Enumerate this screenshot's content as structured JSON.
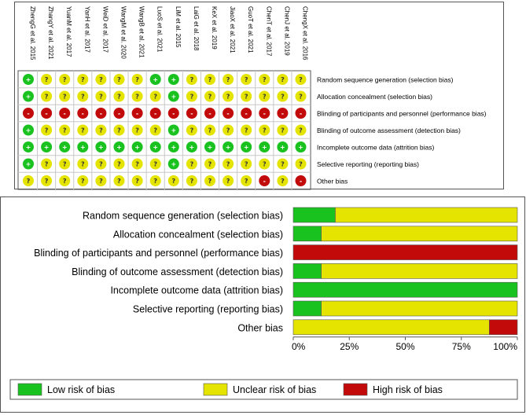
{
  "chart_data": [
    {
      "type": "table",
      "studies": [
        "ZhengG et al. 2015",
        "ZhangY et al. 2021",
        "YuanM et al. 2017",
        "YanH et al. 2017",
        "WeiD et al. 2017",
        "WangM et al. 2020",
        "WangB et al. 2021",
        "LuoS et al. 2021",
        "LiM et al. 2015",
        "LaiG et al. 2018",
        "KeX et al. 2019",
        "JiaoX et al. 2021",
        "GuoT et al. 2021",
        "ChenT et al. 2017",
        "ChenJ et al. 2019",
        "ChengX et al. 2016"
      ],
      "domains": [
        "Random sequence generation (selection bias)",
        "Allocation concealment (selection bias)",
        "Blinding of participants and personnel (performance bias)",
        "Blinding of outcome assessment (detection bias)",
        "Incomplete outcome data (attrition bias)",
        "Selective reporting (reporting bias)",
        "Other bias"
      ],
      "symbols": {
        "low": "+",
        "unclear": "?",
        "high": "-"
      },
      "ratings": [
        [
          "low",
          "unclear",
          "unclear",
          "unclear",
          "unclear",
          "unclear",
          "unclear",
          "low",
          "low",
          "unclear",
          "unclear",
          "unclear",
          "unclear",
          "unclear",
          "unclear",
          "unclear"
        ],
        [
          "low",
          "unclear",
          "unclear",
          "unclear",
          "unclear",
          "unclear",
          "unclear",
          "unclear",
          "low",
          "unclear",
          "unclear",
          "unclear",
          "unclear",
          "unclear",
          "unclear",
          "unclear"
        ],
        [
          "high",
          "high",
          "high",
          "high",
          "high",
          "high",
          "high",
          "high",
          "high",
          "high",
          "high",
          "high",
          "high",
          "high",
          "high",
          "high"
        ],
        [
          "low",
          "unclear",
          "unclear",
          "unclear",
          "unclear",
          "unclear",
          "unclear",
          "unclear",
          "low",
          "unclear",
          "unclear",
          "unclear",
          "unclear",
          "unclear",
          "unclear",
          "unclear"
        ],
        [
          "low",
          "low",
          "low",
          "low",
          "low",
          "low",
          "low",
          "low",
          "low",
          "low",
          "low",
          "low",
          "low",
          "low",
          "low",
          "low"
        ],
        [
          "low",
          "unclear",
          "unclear",
          "unclear",
          "unclear",
          "unclear",
          "unclear",
          "unclear",
          "low",
          "unclear",
          "unclear",
          "unclear",
          "unclear",
          "unclear",
          "unclear",
          "unclear"
        ],
        [
          "unclear",
          "unclear",
          "unclear",
          "unclear",
          "unclear",
          "unclear",
          "unclear",
          "unclear",
          "unclear",
          "unclear",
          "unclear",
          "unclear",
          "unclear",
          "high",
          "unclear",
          "high"
        ]
      ]
    },
    {
      "type": "bar",
      "orientation": "horizontal",
      "stacked": true,
      "categories": [
        "Random sequence generation (selection bias)",
        "Allocation concealment (selection bias)",
        "Blinding of participants and personnel (performance bias)",
        "Blinding of outcome assessment (detection bias)",
        "Incomplete outcome data (attrition bias)",
        "Selective reporting (reporting bias)",
        "Other bias"
      ],
      "series": [
        {
          "name": "Low risk of bias",
          "values": [
            18.75,
            12.5,
            0,
            12.5,
            100,
            12.5,
            0
          ]
        },
        {
          "name": "Unclear risk of bias",
          "values": [
            81.25,
            87.5,
            0,
            87.5,
            0,
            87.5,
            87.5
          ]
        },
        {
          "name": "High risk of bias",
          "values": [
            0,
            0,
            100,
            0,
            0,
            0,
            12.5
          ]
        }
      ],
      "xlim": [
        0,
        100
      ],
      "xticks": [
        "0%",
        "25%",
        "50%",
        "75%",
        "100%"
      ],
      "legend_position": "bottom"
    }
  ],
  "colors": {
    "low": "#19c21f",
    "unclear": "#e4e400",
    "high": "#c20a0a"
  }
}
